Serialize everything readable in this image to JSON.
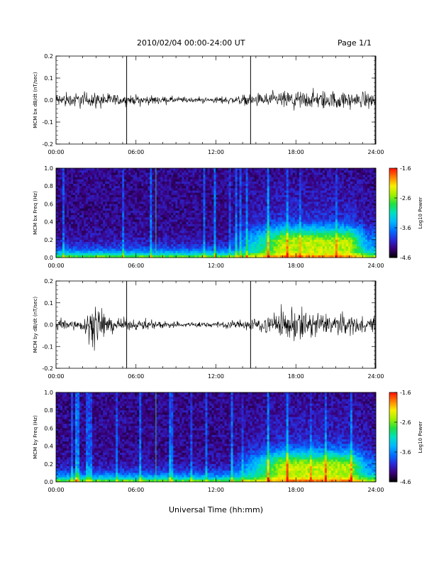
{
  "header": {
    "title": "2010/02/04  00:00-24:00 UT",
    "page": "Page 1/1"
  },
  "xaxis": {
    "label": "Universal Time (hh:mm)",
    "ticks": [
      "00:00",
      "06:00",
      "12:00",
      "18:00",
      "24:00"
    ],
    "range_hours": [
      0,
      24
    ]
  },
  "colorbar": {
    "label": "Log10 Power",
    "ticks": [
      "-1.6",
      "-2.6",
      "-3.6",
      "-4.6"
    ],
    "range": [
      -4.6,
      -1.6
    ],
    "colormap": [
      "#000000",
      "#3a007a",
      "#2a2ad8",
      "#0070ff",
      "#00b8ff",
      "#00e0c0",
      "#20e040",
      "#a0f000",
      "#f8f000",
      "#ff8000",
      "#ff1000"
    ]
  },
  "chart_data": [
    {
      "type": "line",
      "name": "mcm-bx-dbdt",
      "ylabel": "MCM bx dB/dt (nT/sec)",
      "ylim": [
        -0.2,
        0.2
      ],
      "yticks": [
        "0.2",
        "0.1",
        "0.0",
        "-0.1",
        "-0.2"
      ],
      "spike_times_hours": [
        5.3,
        14.6,
        24.0
      ],
      "amplitude_envelope": {
        "hours": [
          0,
          2,
          4,
          6,
          8,
          10,
          12,
          14,
          16,
          18,
          20,
          22,
          24
        ],
        "amplitude": [
          0.04,
          0.04,
          0.035,
          0.025,
          0.02,
          0.015,
          0.015,
          0.025,
          0.04,
          0.05,
          0.05,
          0.045,
          0.04
        ]
      }
    },
    {
      "type": "heatmap",
      "name": "mcm-bx-freq",
      "ylabel": "MCM bx Freq (Hz)",
      "ylim": [
        0,
        1.0
      ],
      "yticks": [
        "1.0",
        "0.8",
        "0.6",
        "0.4",
        "0.2",
        "0.0"
      ],
      "colorbar_range": [
        -4.6,
        -1.6
      ]
    },
    {
      "type": "line",
      "name": "mcm-by-dbdt",
      "ylabel": "MCM by dB/dt (nT/sec)",
      "ylim": [
        -0.2,
        0.2
      ],
      "yticks": [
        "0.2",
        "0.1",
        "0.0",
        "-0.1",
        "-0.2"
      ],
      "spike_times_hours": [
        5.3,
        14.6,
        24.0
      ],
      "amplitude_envelope": {
        "hours": [
          0,
          2,
          3,
          4,
          6,
          8,
          10,
          12,
          14,
          16,
          18,
          20,
          22,
          24
        ],
        "amplitude": [
          0.04,
          0.03,
          0.12,
          0.04,
          0.025,
          0.02,
          0.015,
          0.015,
          0.025,
          0.05,
          0.1,
          0.06,
          0.045,
          0.04
        ]
      }
    },
    {
      "type": "heatmap",
      "name": "mcm-by-freq",
      "ylabel": "MCM by Freq (Hz)",
      "ylim": [
        0,
        1.0
      ],
      "yticks": [
        "1.0",
        "0.8",
        "0.6",
        "0.4",
        "0.2",
        "0.0"
      ],
      "colorbar_range": [
        -4.6,
        -1.6
      ]
    }
  ]
}
